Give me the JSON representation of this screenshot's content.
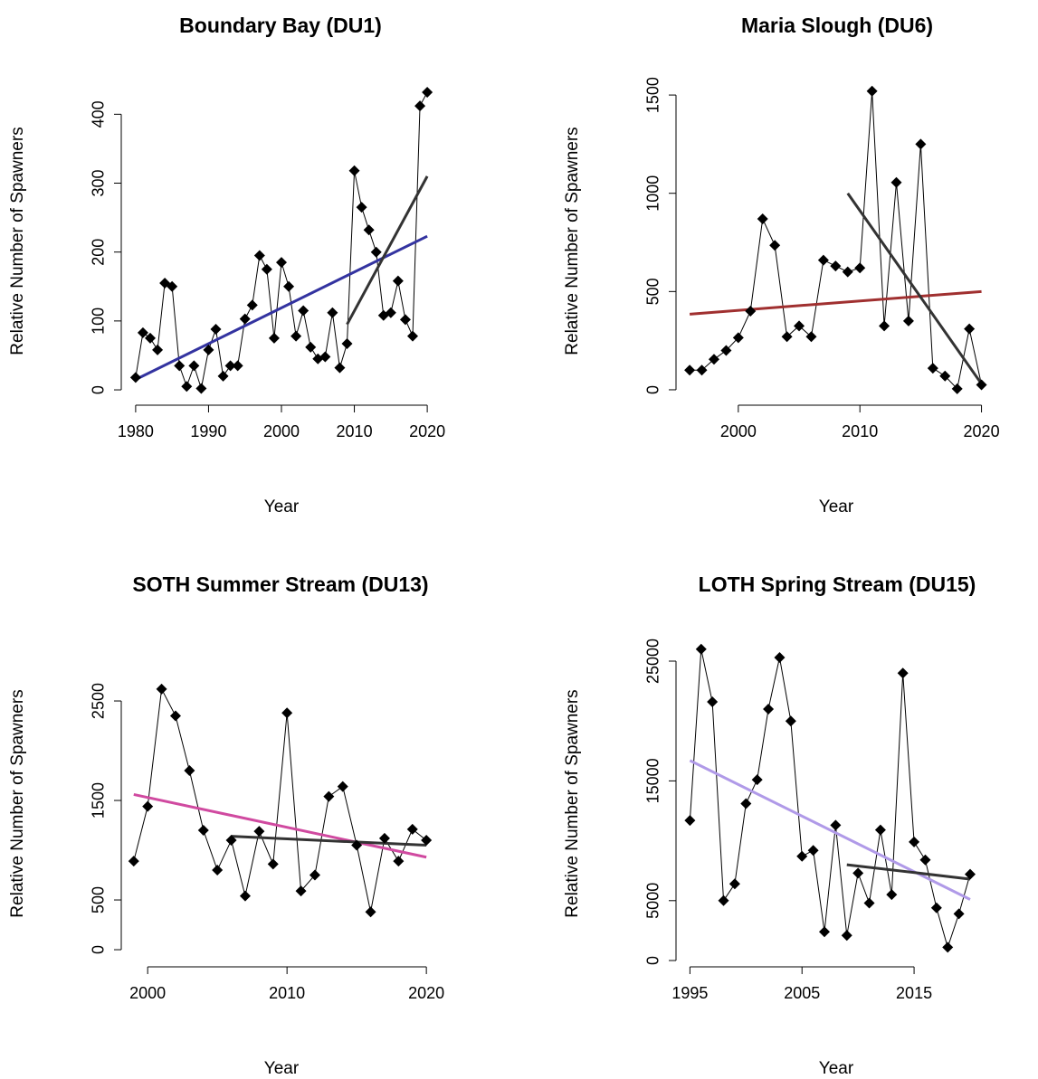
{
  "chart_data": [
    {
      "type": "line",
      "title": "Boundary Bay (DU1)",
      "x_label": "Year",
      "y_label": "Relative Number of Spawners",
      "x": [
        1980,
        1981,
        1982,
        1983,
        1984,
        1985,
        1986,
        1987,
        1988,
        1989,
        1990,
        1991,
        1992,
        1993,
        1994,
        1995,
        1996,
        1997,
        1998,
        1999,
        2000,
        2001,
        2002,
        2003,
        2004,
        2005,
        2006,
        2007,
        2008,
        2009,
        2010,
        2011,
        2012,
        2013,
        2014,
        2015,
        2016,
        2017,
        2018,
        2019,
        2020
      ],
      "values": [
        18,
        83,
        75,
        58,
        155,
        150,
        35,
        5,
        35,
        2,
        58,
        88,
        20,
        35,
        35,
        103,
        123,
        195,
        175,
        75,
        185,
        150,
        78,
        115,
        62,
        45,
        48,
        112,
        32,
        67,
        318,
        265,
        232,
        200,
        108,
        112,
        158,
        102,
        78,
        412,
        432
      ],
      "color": "#000000",
      "trends": [
        {
          "x": [
            1980,
            2020
          ],
          "values": [
            15,
            223
          ],
          "color": "#3333a0"
        },
        {
          "x": [
            2009,
            2020
          ],
          "values": [
            95,
            310
          ],
          "color": "#333333"
        }
      ],
      "xlim": [
        1978.4,
        2021.6
      ],
      "ylim": [
        -17,
        449
      ],
      "xticks": [
        1980,
        1990,
        2000,
        2010,
        2020
      ],
      "yticks": [
        0,
        100,
        200,
        300,
        400
      ]
    },
    {
      "type": "line",
      "title": "Maria Slough (DU6)",
      "x_label": "Year",
      "y_label": "Relative Number of Spawners",
      "x": [
        1996,
        1997,
        1998,
        1999,
        2000,
        2001,
        2002,
        2003,
        2004,
        2005,
        2006,
        2007,
        2008,
        2009,
        2010,
        2011,
        2012,
        2013,
        2014,
        2015,
        2016,
        2017,
        2018,
        2019,
        2020
      ],
      "values": [
        100,
        100,
        155,
        200,
        265,
        400,
        870,
        735,
        270,
        325,
        270,
        660,
        630,
        600,
        620,
        1520,
        325,
        1055,
        350,
        1250,
        110,
        70,
        5,
        310,
        25
      ],
      "color": "#000000",
      "trends": [
        {
          "x": [
            1996,
            2020
          ],
          "values": [
            385,
            500
          ],
          "color": "#a03030"
        },
        {
          "x": [
            2009,
            2020
          ],
          "values": [
            1000,
            30
          ],
          "color": "#333333"
        }
      ],
      "xlim": [
        1995.1,
        2021
      ],
      "ylim": [
        -60,
        1574
      ],
      "xticks": [
        2000,
        2010,
        2020
      ],
      "yticks": [
        0,
        500,
        1000,
        1500
      ]
    },
    {
      "type": "line",
      "title": "SOTH Summer Stream (DU13)",
      "x_label": "Year",
      "y_label": "Relative Number of Spawners",
      "x": [
        1999,
        2000,
        2001,
        2002,
        2003,
        2004,
        2005,
        2006,
        2007,
        2008,
        2009,
        2010,
        2011,
        2012,
        2013,
        2014,
        2015,
        2016,
        2017,
        2018,
        2019,
        2020
      ],
      "values": [
        890,
        1440,
        2620,
        2350,
        1800,
        1200,
        800,
        1100,
        540,
        1190,
        860,
        2380,
        590,
        750,
        1540,
        1640,
        1050,
        380,
        1120,
        890,
        1210,
        1100
      ],
      "color": "#000000",
      "trends": [
        {
          "x": [
            1999,
            2020
          ],
          "values": [
            1560,
            930
          ],
          "color": "#d04aa0"
        },
        {
          "x": [
            2006,
            2020
          ],
          "values": [
            1140,
            1050
          ],
          "color": "#333333"
        }
      ],
      "xlim": [
        1998.3,
        2020.9
      ],
      "ylim": [
        -136,
        3073
      ],
      "xticks": [
        2000,
        2010,
        2020
      ],
      "yticks": [
        0,
        500,
        1500,
        2500
      ]
    },
    {
      "type": "line",
      "title": "LOTH Spring Stream (DU15)",
      "x_label": "Year",
      "y_label": "Relative Number of Spawners",
      "x": [
        1995,
        1996,
        1997,
        1998,
        1999,
        2000,
        2001,
        2002,
        2003,
        2004,
        2005,
        2006,
        2007,
        2008,
        2009,
        2010,
        2011,
        2012,
        2013,
        2014,
        2015,
        2016,
        2017,
        2018,
        2019,
        2020
      ],
      "values": [
        11700,
        26000,
        21600,
        5000,
        6400,
        13100,
        15100,
        21000,
        25300,
        20000,
        8700,
        9200,
        2400,
        11300,
        2100,
        7300,
        4800,
        10900,
        5500,
        24000,
        9900,
        8400,
        4400,
        1100,
        3900,
        7200
      ],
      "color": "#000000",
      "trends": [
        {
          "x": [
            1995,
            2020
          ],
          "values": [
            16700,
            5100
          ],
          "color": "#b09ae8"
        },
        {
          "x": [
            2009,
            2020
          ],
          "values": [
            8000,
            6800
          ],
          "color": "#333333"
        }
      ],
      "xlim": [
        1994,
        2022.1
      ],
      "ylim": [
        -227,
        26435
      ],
      "xticks": [
        1995,
        2005,
        2015
      ],
      "yticks": [
        0,
        5000,
        15000,
        25000
      ]
    }
  ]
}
